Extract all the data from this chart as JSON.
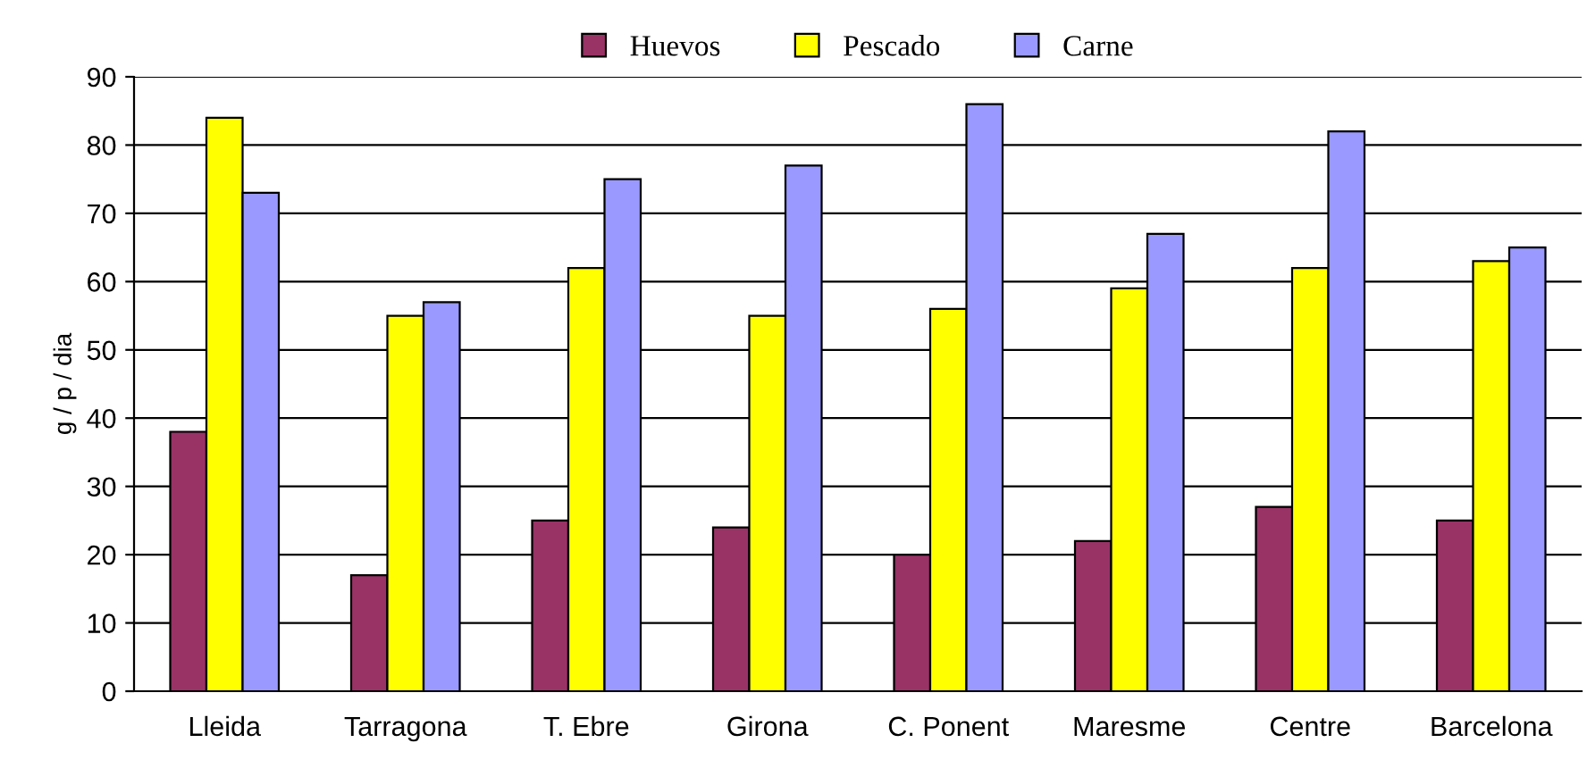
{
  "chart_data": {
    "type": "bar",
    "ylabel": "g / p / dia",
    "categories": [
      "Lleida",
      "Tarragona",
      "T. Ebre",
      "Girona",
      "C. Ponent",
      "Maresme",
      "Centre",
      "Barcelona"
    ],
    "series": [
      {
        "name": "Huevos",
        "color": "#993366",
        "values": [
          38,
          17,
          25,
          24,
          20,
          22,
          27,
          25
        ]
      },
      {
        "name": "Pescado",
        "color": "#ffff00",
        "values": [
          84,
          55,
          62,
          55,
          56,
          59,
          62,
          63
        ]
      },
      {
        "name": "Carne",
        "color": "#9999ff",
        "values": [
          73,
          57,
          75,
          77,
          86,
          67,
          82,
          65
        ]
      }
    ],
    "ylim": [
      0,
      90
    ],
    "yticks": [
      0,
      10,
      20,
      30,
      40,
      50,
      60,
      70,
      80,
      90
    ],
    "grid": "y",
    "legend": "top"
  }
}
